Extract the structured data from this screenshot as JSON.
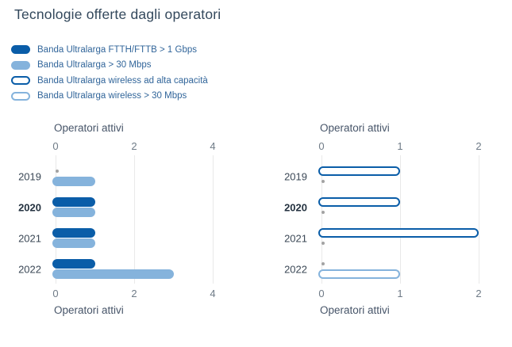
{
  "title": "Tecnologie offerte dagli operatori",
  "colors": {
    "dark_blue": "#0a5da8",
    "light_blue": "#85b3dc",
    "title_text": "#33485c",
    "legend_text": "#31659a",
    "axis_tick_text": "#6f7b87",
    "axis_label_text": "#475569",
    "year_text": "#3b4856",
    "gridline": "#e9e9e9",
    "zero_dot": "#a3a3a3"
  },
  "legend": {
    "items": [
      {
        "label": "Banda Ultralarga FTTH/FTTB > 1 Gbps",
        "style": "dark-filled"
      },
      {
        "label": "Banda Ultralarga > 30 Mbps",
        "style": "light-filled"
      },
      {
        "label": "Banda Ultralarga wireless ad alta capacità",
        "style": "dark-outline"
      },
      {
        "label": "Banda Ultralarga wireless > 30 Mbps",
        "style": "light-outline"
      }
    ]
  },
  "chart_data": [
    {
      "type": "bar",
      "orientation": "horizontal",
      "name": "fixed-broadband-operators",
      "axis_label_top": "Operatori attivi",
      "axis_label_bottom": "Operatori attivi",
      "categories": [
        "2019",
        "2020",
        "2021",
        "2022"
      ],
      "highlighted_category": "2020",
      "series": [
        {
          "name": "Banda Ultralarga FTTH/FTTB > 1 Gbps",
          "style": "dark-filled",
          "values": [
            0,
            1,
            1,
            1
          ]
        },
        {
          "name": "Banda Ultralarga > 30 Mbps",
          "style": "light-filled",
          "values": [
            1,
            1,
            1,
            3
          ]
        }
      ],
      "ticks": [
        0,
        2,
        4
      ],
      "xlim": [
        0,
        4.5
      ],
      "grid": true,
      "zero_shown_as_dot": true
    },
    {
      "type": "bar",
      "orientation": "horizontal",
      "name": "wireless-broadband-operators",
      "axis_label_top": "Operatori attivi",
      "axis_label_bottom": "Operatori attivi",
      "categories": [
        "2019",
        "2020",
        "2021",
        "2022"
      ],
      "highlighted_category": "2020",
      "series": [
        {
          "name": "Banda Ultralarga wireless ad alta capacità",
          "style": "dark-outline",
          "values": [
            1,
            1,
            2,
            0
          ]
        },
        {
          "name": "Banda Ultralarga wireless > 30 Mbps",
          "style": "light-outline",
          "values": [
            0,
            0,
            0,
            1
          ]
        }
      ],
      "ticks": [
        0,
        1,
        2
      ],
      "xlim": [
        0,
        2.3
      ],
      "grid": true,
      "zero_shown_as_dot": true
    }
  ]
}
